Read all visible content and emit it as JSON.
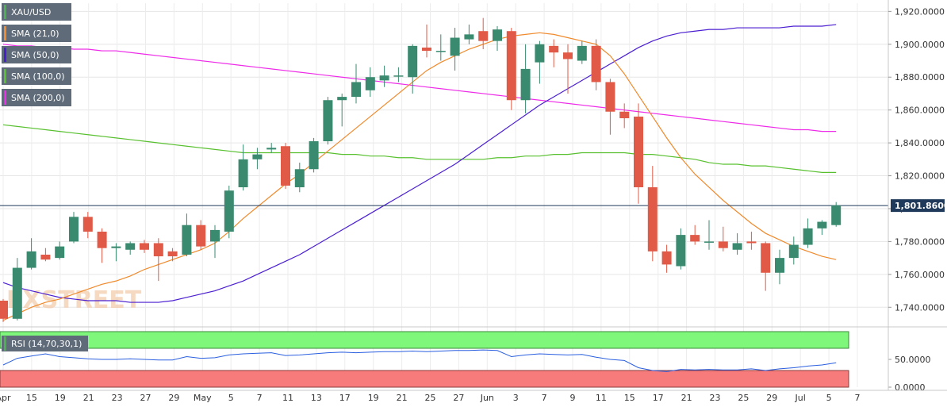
{
  "legend": [
    {
      "label": "XAU/USD",
      "color": "#4caf50"
    },
    {
      "label": "SMA (21,0)",
      "color": "#f08a2c"
    },
    {
      "label": "SMA (50,0)",
      "color": "#4b1fd1"
    },
    {
      "label": "SMA (100,0)",
      "color": "#58c02f"
    },
    {
      "label": "SMA (200,0)",
      "color": "#ee2be8"
    }
  ],
  "rsi_label": "RSI (14,70,30,1)",
  "watermark": "FXSTREET",
  "colors": {
    "up": "#3a8a70",
    "down": "#e05a47",
    "sma21": "#f08a2c",
    "sma50": "#4b1fd1",
    "sma100": "#58c02f",
    "sma200": "#ee2be8",
    "rsi": "#2a5fe0",
    "overbought": "#7ef77a",
    "oversold": "#f77b7b",
    "last_price_line": "#1f3a5a"
  },
  "chart_data": [
    {
      "type": "candlestick",
      "title": "",
      "ylim": [
        1730,
        1925
      ],
      "y_ticks": [
        "1,740.0000",
        "1,760.0000",
        "1,780.0000",
        "1,800.0000",
        "1,820.0000",
        "1,840.0000",
        "1,860.0000",
        "1,880.0000",
        "1,900.0000",
        "1,920.0000"
      ],
      "y_tick_values": [
        1740,
        1760,
        1780,
        1800,
        1820,
        1840,
        1860,
        1880,
        1900,
        1920
      ],
      "x_tick_labels": [
        "Apr",
        "15",
        "19",
        "21",
        "23",
        "27",
        "29",
        "May",
        "5",
        "7",
        "11",
        "13",
        "17",
        "19",
        "21",
        "25",
        "27",
        "Jun",
        "3",
        "7",
        "9",
        "11",
        "15",
        "17",
        "21",
        "23",
        "25",
        "29",
        "Jul",
        "5",
        "7"
      ],
      "last_price_label": "1,801.8600",
      "last_price": 1801.86,
      "candles": [
        [
          1744,
          1733,
          1745,
          1731
        ],
        [
          1733,
          1764,
          1770,
          1732
        ],
        [
          1764,
          1774,
          1782,
          1763
        ],
        [
          1772,
          1769,
          1776,
          1768
        ],
        [
          1770,
          1777,
          1780,
          1769
        ],
        [
          1780,
          1795,
          1798,
          1779
        ],
        [
          1795,
          1786,
          1798,
          1782
        ],
        [
          1786,
          1776,
          1788,
          1767
        ],
        [
          1776,
          1777,
          1779,
          1768
        ],
        [
          1775,
          1779,
          1780,
          1772
        ],
        [
          1779,
          1775,
          1781,
          1773
        ],
        [
          1779,
          1771,
          1782,
          1756
        ],
        [
          1774,
          1771,
          1776,
          1768
        ],
        [
          1772,
          1790,
          1797,
          1771
        ],
        [
          1790,
          1777,
          1793,
          1775
        ],
        [
          1780,
          1787,
          1790,
          1770
        ],
        [
          1786,
          1811,
          1814,
          1782
        ],
        [
          1813,
          1830,
          1839,
          1811
        ],
        [
          1830,
          1833,
          1837,
          1824
        ],
        [
          1836,
          1837,
          1840,
          1834
        ],
        [
          1838,
          1814,
          1840,
          1812
        ],
        [
          1813,
          1824,
          1828,
          1810
        ],
        [
          1824,
          1841,
          1843,
          1822
        ],
        [
          1841,
          1866,
          1868,
          1839
        ],
        [
          1866,
          1868,
          1870,
          1850
        ],
        [
          1868,
          1877,
          1888,
          1864
        ],
        [
          1872,
          1880,
          1886,
          1868
        ],
        [
          1878,
          1881,
          1887,
          1874
        ],
        [
          1881,
          1881,
          1886,
          1877
        ],
        [
          1880,
          1899,
          1900,
          1870
        ],
        [
          1898,
          1896,
          1912,
          1892
        ],
        [
          1896,
          1896,
          1906,
          1890
        ],
        [
          1893,
          1904,
          1910,
          1884
        ],
        [
          1903,
          1906,
          1912,
          1900
        ],
        [
          1908,
          1902,
          1916,
          1897
        ],
        [
          1902,
          1909,
          1911,
          1896
        ],
        [
          1908,
          1866,
          1910,
          1860
        ],
        [
          1866,
          1885,
          1900,
          1858
        ],
        [
          1889,
          1900,
          1902,
          1876
        ],
        [
          1899,
          1895,
          1903,
          1886
        ],
        [
          1895,
          1891,
          1900,
          1870
        ],
        [
          1890,
          1899,
          1902,
          1888
        ],
        [
          1899,
          1877,
          1903,
          1872
        ],
        [
          1877,
          1859,
          1879,
          1845
        ],
        [
          1859,
          1855,
          1864,
          1849
        ],
        [
          1856,
          1813,
          1864,
          1803
        ],
        [
          1813,
          1774,
          1826,
          1768
        ],
        [
          1774,
          1766,
          1778,
          1761
        ],
        [
          1765,
          1784,
          1788,
          1763
        ],
        [
          1784,
          1780,
          1790,
          1778
        ],
        [
          1780,
          1780,
          1793,
          1775
        ],
        [
          1780,
          1776,
          1789,
          1774
        ],
        [
          1775,
          1779,
          1785,
          1772
        ],
        [
          1780,
          1779,
          1786,
          1775
        ],
        [
          1779,
          1761,
          1780,
          1750
        ],
        [
          1761,
          1770,
          1775,
          1754
        ],
        [
          1770,
          1778,
          1783,
          1766
        ],
        [
          1778,
          1788,
          1794,
          1776
        ],
        [
          1788,
          1792,
          1793,
          1784
        ],
        [
          1790,
          1802,
          1804,
          1789
        ]
      ],
      "sma21": [
        1732,
        1736,
        1740,
        1743,
        1745,
        1748,
        1751,
        1754,
        1756,
        1759,
        1763,
        1766,
        1769,
        1772,
        1775,
        1779,
        1786,
        1794,
        1801,
        1808,
        1815,
        1821,
        1828,
        1835,
        1842,
        1849,
        1856,
        1863,
        1870,
        1877,
        1884,
        1889,
        1893,
        1897,
        1900,
        1903,
        1905,
        1906,
        1907,
        1906,
        1904,
        1902,
        1900,
        1893,
        1882,
        1869,
        1856,
        1843,
        1831,
        1821,
        1813,
        1805,
        1798,
        1791,
        1785,
        1781,
        1777,
        1774,
        1771,
        1769
      ],
      "sma50": [
        1755,
        1752,
        1750,
        1748,
        1746,
        1745,
        1744,
        1744,
        1744,
        1743,
        1743,
        1743,
        1744,
        1746,
        1748,
        1750,
        1753,
        1756,
        1760,
        1764,
        1768,
        1772,
        1777,
        1782,
        1787,
        1792,
        1797,
        1802,
        1807,
        1812,
        1817,
        1822,
        1827,
        1833,
        1839,
        1845,
        1851,
        1857,
        1863,
        1868,
        1873,
        1878,
        1883,
        1888,
        1893,
        1898,
        1902,
        1905,
        1907,
        1908,
        1909,
        1909,
        1910,
        1910,
        1910,
        1910,
        1911,
        1911,
        1911,
        1912
      ],
      "sma100": [
        1851,
        1850,
        1849,
        1848,
        1847,
        1846,
        1845,
        1844,
        1843,
        1842,
        1841,
        1840,
        1839,
        1838,
        1837,
        1836,
        1835,
        1834,
        1834,
        1834,
        1834,
        1834,
        1834,
        1834,
        1833,
        1833,
        1832,
        1832,
        1831,
        1831,
        1830,
        1830,
        1830,
        1830,
        1830,
        1831,
        1831,
        1832,
        1832,
        1833,
        1833,
        1834,
        1834,
        1834,
        1834,
        1833,
        1833,
        1832,
        1831,
        1830,
        1828,
        1827,
        1827,
        1826,
        1826,
        1825,
        1824,
        1823,
        1822,
        1822
      ],
      "sma200": [
        1900,
        1899,
        1899,
        1898,
        1898,
        1897,
        1897,
        1896,
        1896,
        1895,
        1894,
        1893,
        1892,
        1891,
        1890,
        1889,
        1888,
        1887,
        1886,
        1885,
        1884,
        1883,
        1882,
        1881,
        1880,
        1879,
        1878,
        1877,
        1876,
        1875,
        1874,
        1873,
        1872,
        1871,
        1870,
        1869,
        1868,
        1867,
        1866,
        1865,
        1864,
        1863,
        1862,
        1861,
        1860,
        1859,
        1858,
        1857,
        1856,
        1855,
        1854,
        1853,
        1852,
        1851,
        1850,
        1849,
        1848,
        1848,
        1847,
        1847
      ]
    },
    {
      "type": "line",
      "title": "RSI (14,70,30,1)",
      "ylim": [
        0,
        100
      ],
      "y_ticks": [
        "50.0000",
        "0.0000"
      ],
      "y_tick_values": [
        50,
        0
      ],
      "zones": {
        "overbought": [
          70,
          100
        ],
        "oversold": [
          0,
          30
        ]
      },
      "values": [
        40,
        52,
        56,
        60,
        55,
        53,
        51,
        50,
        50,
        51,
        50,
        49,
        49,
        55,
        52,
        53,
        58,
        60,
        61,
        62,
        57,
        58,
        60,
        62,
        63,
        62,
        63,
        64,
        64,
        65,
        64,
        65,
        66,
        66,
        67,
        66,
        55,
        58,
        60,
        59,
        58,
        59,
        54,
        50,
        48,
        35,
        30,
        28,
        32,
        31,
        32,
        31,
        31,
        33,
        30,
        33,
        35,
        38,
        40,
        44
      ]
    }
  ]
}
